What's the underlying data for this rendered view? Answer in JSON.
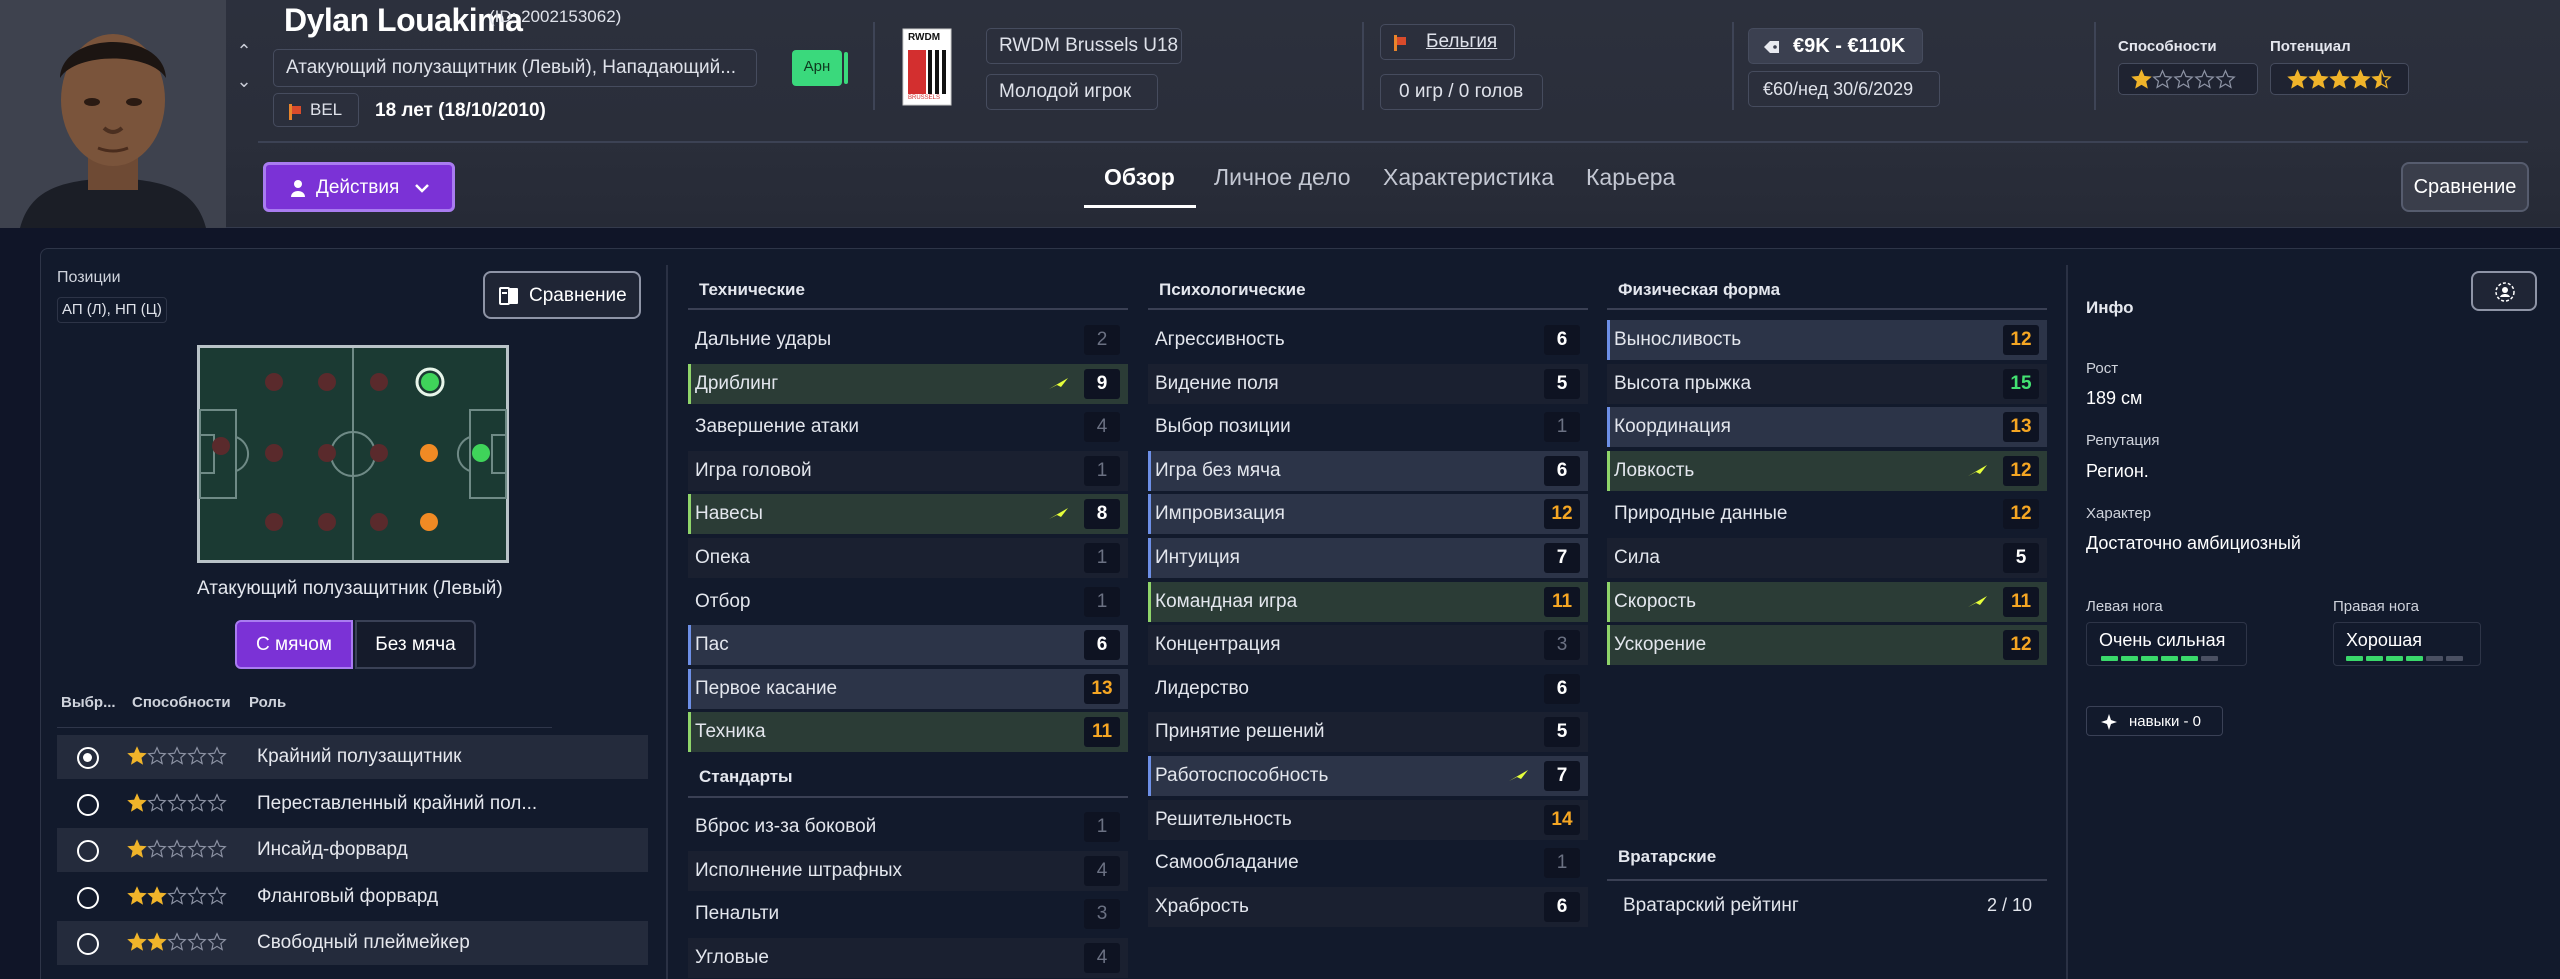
{
  "player": {
    "name": "Dylan Louakima",
    "id_text": "(ID: 2002153062)",
    "positions_full": "Атакующий полузащитник (Левый), Нападающий...",
    "nation_code": "BEL",
    "age_text": "18 лет (18/10/2010)",
    "status_badge": "Арн",
    "club": "RWDM Brussels U18",
    "club_crest_text": "RWDM",
    "club_crest_sub": "BRUSSELS",
    "squad_status": "Молодой игрок",
    "nation_link": "Бельгия",
    "apps_goals": "0 игр / 0 голов",
    "value_range": "€9K - €110K",
    "wage": "€60/нед",
    "contract_end": "30/6/2029",
    "ability_label": "Способности",
    "potential_label": "Потенциал",
    "ability_stars": 1,
    "potential_stars": 4.5
  },
  "actions_label": "Действия",
  "tabs": [
    "Обзор",
    "Личное дело",
    "Характеристика",
    "Карьера"
  ],
  "compare_label": "Сравнение",
  "positions": {
    "title": "Позиции",
    "short": "АП (Л), НП (Ц)",
    "compare_label": "Сравнение",
    "role_caption": "Атакующий полузащитник (Левый)",
    "toggle_with_ball": "С мячом",
    "toggle_without_ball": "Без мяча",
    "col_select": "Выбр...",
    "col_ability": "Способности",
    "col_role": "Роль",
    "roles": [
      {
        "name": "Крайний полузащитник",
        "stars": 1,
        "selected": true
      },
      {
        "name": "Переставленный крайний пол...",
        "stars": 1,
        "selected": false
      },
      {
        "name": "Инсайд-форвард",
        "stars": 1,
        "selected": false
      },
      {
        "name": "Фланговый форвард",
        "stars": 2,
        "selected": false
      },
      {
        "name": "Свободный плеймейкер",
        "stars": 2,
        "selected": false
      }
    ]
  },
  "technical": {
    "title": "Технические",
    "attrs": [
      {
        "name": "Дальние удары",
        "value": "2",
        "color": "dim",
        "hl": "none",
        "bolt": false
      },
      {
        "name": "Дриблинг",
        "value": "9",
        "color": "white",
        "hl": "green",
        "bolt": true
      },
      {
        "name": "Завершение атаки",
        "value": "4",
        "color": "dim",
        "hl": "none",
        "bolt": false
      },
      {
        "name": "Игра головой",
        "value": "1",
        "color": "dim",
        "hl": "none",
        "bolt": false
      },
      {
        "name": "Навесы",
        "value": "8",
        "color": "white",
        "hl": "green",
        "bolt": true
      },
      {
        "name": "Опека",
        "value": "1",
        "color": "dim",
        "hl": "none",
        "bolt": false
      },
      {
        "name": "Отбор",
        "value": "1",
        "color": "dim",
        "hl": "none",
        "bolt": false
      },
      {
        "name": "Пас",
        "value": "6",
        "color": "white",
        "hl": "blue",
        "bolt": false
      },
      {
        "name": "Первое касание",
        "value": "13",
        "color": "orange",
        "hl": "blue",
        "bolt": false
      },
      {
        "name": "Техника",
        "value": "11",
        "color": "orange",
        "hl": "green",
        "bolt": false
      }
    ]
  },
  "setpieces": {
    "title": "Стандарты",
    "attrs": [
      {
        "name": "Вброс из-за боковой",
        "value": "1",
        "color": "dim",
        "hl": "none",
        "bolt": false
      },
      {
        "name": "Исполнение штрафных",
        "value": "4",
        "color": "dim",
        "hl": "none",
        "bolt": false
      },
      {
        "name": "Пенальти",
        "value": "3",
        "color": "dim",
        "hl": "none",
        "bolt": false
      },
      {
        "name": "Угловые",
        "value": "4",
        "color": "dim",
        "hl": "none",
        "bolt": false
      }
    ]
  },
  "mental": {
    "title": "Психологические",
    "attrs": [
      {
        "name": "Агрессивность",
        "value": "6",
        "color": "white",
        "hl": "none",
        "bolt": false
      },
      {
        "name": "Видение поля",
        "value": "5",
        "color": "white",
        "hl": "none",
        "bolt": false
      },
      {
        "name": "Выбор позиции",
        "value": "1",
        "color": "dim",
        "hl": "none",
        "bolt": false
      },
      {
        "name": "Игра без мяча",
        "value": "6",
        "color": "white",
        "hl": "blue",
        "bolt": false
      },
      {
        "name": "Импровизация",
        "value": "12",
        "color": "orange",
        "hl": "blue",
        "bolt": false
      },
      {
        "name": "Интуиция",
        "value": "7",
        "color": "white",
        "hl": "blue",
        "bolt": false
      },
      {
        "name": "Командная игра",
        "value": "11",
        "color": "orange",
        "hl": "green",
        "bolt": false
      },
      {
        "name": "Концентрация",
        "value": "3",
        "color": "dim",
        "hl": "none",
        "bolt": false
      },
      {
        "name": "Лидерство",
        "value": "6",
        "color": "white",
        "hl": "none",
        "bolt": false
      },
      {
        "name": "Принятие решений",
        "value": "5",
        "color": "white",
        "hl": "none",
        "bolt": false
      },
      {
        "name": "Работоспособность",
        "value": "7",
        "color": "white",
        "hl": "blue",
        "bolt": true
      },
      {
        "name": "Решительность",
        "value": "14",
        "color": "orange",
        "hl": "none",
        "bolt": false
      },
      {
        "name": "Самообладание",
        "value": "1",
        "color": "dim",
        "hl": "none",
        "bolt": false
      },
      {
        "name": "Храбрость",
        "value": "6",
        "color": "white",
        "hl": "none",
        "bolt": false
      }
    ]
  },
  "physical": {
    "title": "Физическая форма",
    "attrs": [
      {
        "name": "Выносливость",
        "value": "12",
        "color": "orange",
        "hl": "blue",
        "bolt": false
      },
      {
        "name": "Высота прыжка",
        "value": "15",
        "color": "green",
        "hl": "none",
        "bolt": false
      },
      {
        "name": "Координация",
        "value": "13",
        "color": "orange",
        "hl": "blue",
        "bolt": false
      },
      {
        "name": "Ловкость",
        "value": "12",
        "color": "orange",
        "hl": "green",
        "bolt": true
      },
      {
        "name": "Природные данные",
        "value": "12",
        "color": "orange",
        "hl": "none",
        "bolt": false
      },
      {
        "name": "Сила",
        "value": "5",
        "color": "white",
        "hl": "none",
        "bolt": false
      },
      {
        "name": "Скорость",
        "value": "11",
        "color": "orange",
        "hl": "green",
        "bolt": true
      },
      {
        "name": "Ускорение",
        "value": "12",
        "color": "orange",
        "hl": "green",
        "bolt": false
      }
    ]
  },
  "goalkeeping": {
    "title": "Вратарские",
    "rating_label": "Вратарский рейтинг",
    "rating_value": "2 / 10"
  },
  "info": {
    "title": "Инфо",
    "height_label": "Рост",
    "height_value": "189 см",
    "rep_label": "Репутация",
    "rep_value": "Регион.",
    "personality_label": "Характер",
    "personality_value": "Достаточно амбициозный",
    "left_foot_label": "Левая нога",
    "left_foot_value": "Очень сильная",
    "left_foot_level": 5,
    "right_foot_label": "Правая нога",
    "right_foot_value": "Хорошая",
    "right_foot_level": 4,
    "skills_label": "навыки - 0"
  },
  "colors": {
    "accent_purple": "#7b32d6",
    "attr_orange": "#f5a623",
    "attr_green": "#43e272",
    "foot_bar": "#3ad96b",
    "star_gold": "#f0b42a"
  }
}
